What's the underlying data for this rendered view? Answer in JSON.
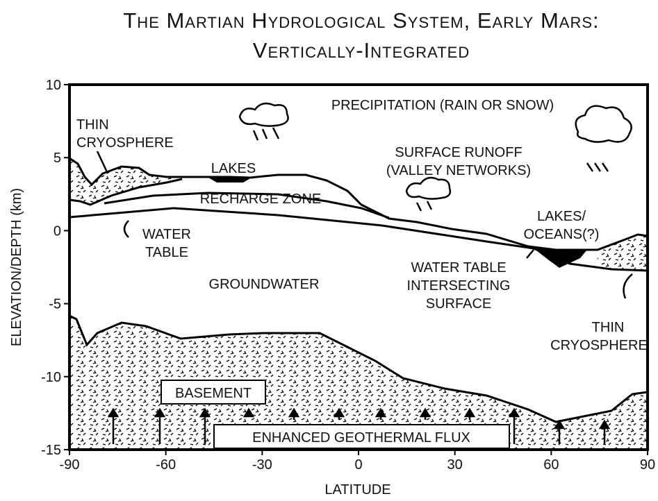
{
  "chart_data": {
    "type": "diagram",
    "title": [
      "The Martian Hydrological System, Early Mars:",
      "Vertically-Integrated"
    ],
    "x_label": "LATITUDE",
    "y_label": "ELEVATION/DEPTH (km)",
    "xlim": [
      -90,
      90
    ],
    "xticks": [
      -90,
      -60,
      -30,
      0,
      30,
      60,
      90
    ],
    "ylim": [
      -15,
      10
    ],
    "yticks": [
      10,
      5,
      0,
      -5,
      -10,
      -15
    ],
    "annotations": [
      {
        "lines": [
          "PRECIPITATION (RAIN OR SNOW)"
        ]
      },
      {
        "lines": [
          "THIN",
          "CRYOSPHERE"
        ]
      },
      {
        "lines": [
          "LAKES"
        ]
      },
      {
        "lines": [
          "SURFACE RUNOFF",
          "(VALLEY NETWORKS)"
        ]
      },
      {
        "lines": [
          "RECHARGE ZONE"
        ]
      },
      {
        "lines": [
          "LAKES/",
          "OCEANS(?)"
        ]
      },
      {
        "lines": [
          "WATER",
          "TABLE"
        ]
      },
      {
        "lines": [
          "GROUNDWATER"
        ]
      },
      {
        "lines": [
          "WATER TABLE",
          "INTERSECTING",
          "SURFACE"
        ]
      },
      {
        "lines": [
          "THIN",
          "CRYOSPHERE"
        ]
      },
      {
        "lines": [
          "BASEMENT"
        ]
      },
      {
        "lines": [
          "ENHANCED GEOTHERMAL FLUX"
        ]
      }
    ]
  }
}
